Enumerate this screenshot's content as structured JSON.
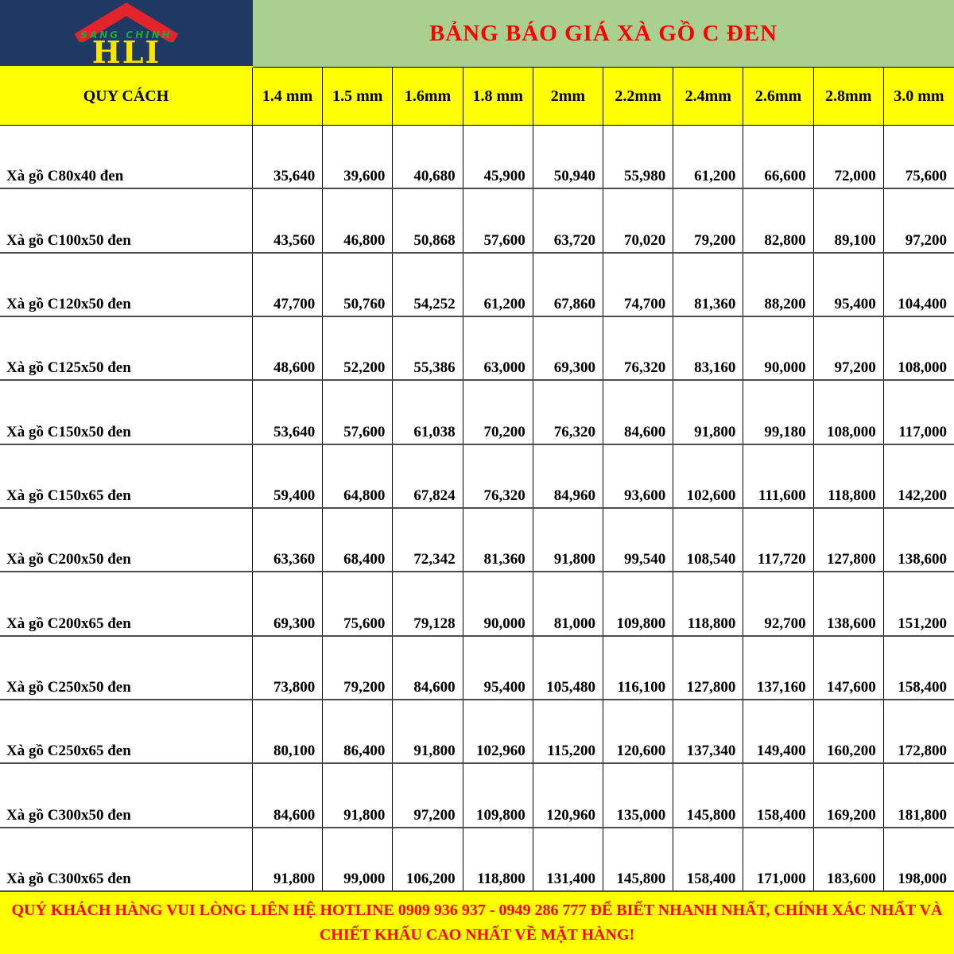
{
  "logo": {
    "brand_top": "SANG CHINH",
    "monogram": "HLI"
  },
  "header": {
    "title": "BẢNG BÁO GIÁ XÀ GỒ C ĐEN"
  },
  "table": {
    "spec_header": "QUY CÁCH",
    "columns": [
      "1.4 mm",
      "1.5 mm",
      "1.6mm",
      "1.8 mm",
      "2mm",
      "2.2mm",
      "2.4mm",
      "2.6mm",
      "2.8mm",
      "3.0 mm"
    ],
    "rows": [
      {
        "label": "Xà gồ C80x40 đen",
        "values": [
          "35,640",
          "39,600",
          "40,680",
          "45,900",
          "50,940",
          "55,980",
          "61,200",
          "66,600",
          "72,000",
          "75,600"
        ]
      },
      {
        "label": "Xà gồ C100x50 đen",
        "values": [
          "43,560",
          "46,800",
          "50,868",
          "57,600",
          "63,720",
          "70,020",
          "79,200",
          "82,800",
          "89,100",
          "97,200"
        ]
      },
      {
        "label": "Xà gồ C120x50 đen",
        "values": [
          "47,700",
          "50,760",
          "54,252",
          "61,200",
          "67,860",
          "74,700",
          "81,360",
          "88,200",
          "95,400",
          "104,400"
        ]
      },
      {
        "label": "Xà gồ C125x50 đen",
        "values": [
          "48,600",
          "52,200",
          "55,386",
          "63,000",
          "69,300",
          "76,320",
          "83,160",
          "90,000",
          "97,200",
          "108,000"
        ]
      },
      {
        "label": "Xà gồ C150x50 đen",
        "values": [
          "53,640",
          "57,600",
          "61,038",
          "70,200",
          "76,320",
          "84,600",
          "91,800",
          "99,180",
          "108,000",
          "117,000"
        ]
      },
      {
        "label": "Xà gồ C150x65 đen",
        "values": [
          "59,400",
          "64,800",
          "67,824",
          "76,320",
          "84,960",
          "93,600",
          "102,600",
          "111,600",
          "118,800",
          "142,200"
        ]
      },
      {
        "label": "Xà gồ C200x50 đen",
        "values": [
          "63,360",
          "68,400",
          "72,342",
          "81,360",
          "91,800",
          "99,540",
          "108,540",
          "117,720",
          "127,800",
          "138,600"
        ]
      },
      {
        "label": "Xà gồ C200x65 đen",
        "values": [
          "69,300",
          "75,600",
          "79,128",
          "90,000",
          "81,000",
          "109,800",
          "118,800",
          "92,700",
          "138,600",
          "151,200"
        ]
      },
      {
        "label": "Xà gồ C250x50 đen",
        "values": [
          "73,800",
          "79,200",
          "84,600",
          "95,400",
          "105,480",
          "116,100",
          "127,800",
          "137,160",
          "147,600",
          "158,400"
        ]
      },
      {
        "label": "Xà gồ C250x65 đen",
        "values": [
          "80,100",
          "86,400",
          "91,800",
          "102,960",
          "115,200",
          "120,600",
          "137,340",
          "149,400",
          "160,200",
          "172,800"
        ]
      },
      {
        "label": "Xà gồ C300x50 đen",
        "values": [
          "84,600",
          "91,800",
          "97,200",
          "109,800",
          "120,960",
          "135,000",
          "145,800",
          "158,400",
          "169,200",
          "181,800"
        ]
      },
      {
        "label": "Xà gồ C300x65 đen",
        "values": [
          "91,800",
          "99,000",
          "106,200",
          "118,800",
          "131,400",
          "145,800",
          "158,400",
          "171,000",
          "183,600",
          "198,000"
        ]
      }
    ]
  },
  "footer": {
    "note": "QUÝ KHÁCH HÀNG VUI LÒNG LIÊN HỆ HOTLINE 0909 936 937 - 0949 286 777 ĐỂ BIẾT NHANH NHẤT, CHÍNH XÁC NHẤT VÀ CHIẾT KHẤU CAO NHẤT VỀ MẶT HÀNG!"
  },
  "colors": {
    "navy": "#1F3864",
    "roof_red": "#E3242B",
    "brand_green": "#1FA83F",
    "monogram_yellow": "#FFE400",
    "banner_green": "#A9D08E",
    "title_red": "#FF0000",
    "header_yellow": "#FFFF00"
  }
}
